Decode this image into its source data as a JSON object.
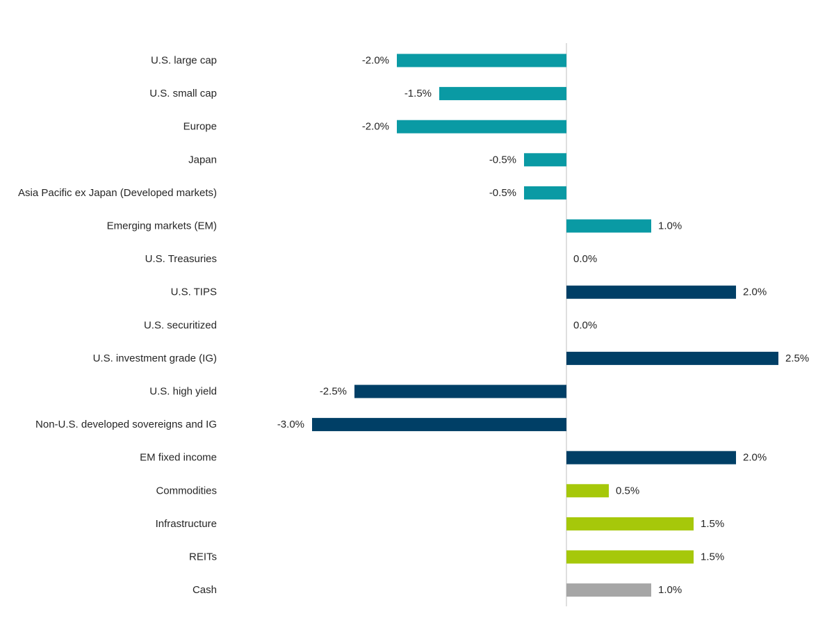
{
  "chart_data": {
    "type": "bar",
    "orientation": "horizontal",
    "categories": [
      "U.S. large cap",
      "U.S. small cap",
      "Europe",
      "Japan",
      "Asia Pacific ex Japan (Developed markets)",
      "Emerging markets (EM)",
      "U.S. Treasuries",
      "U.S. TIPS",
      "U.S. securitized",
      "U.S. investment grade (IG)",
      "U.S. high yield",
      "Non-U.S. developed sovereigns and IG",
      "EM fixed income",
      "Commodities",
      "Infrastructure",
      "REITs",
      "Cash"
    ],
    "values": [
      -2.0,
      -1.5,
      -2.0,
      -0.5,
      -0.5,
      1.0,
      0.0,
      2.0,
      0.0,
      2.5,
      -2.5,
      -3.0,
      2.0,
      0.5,
      1.5,
      1.5,
      1.0
    ],
    "data_labels": [
      "-2.0%",
      "-1.5%",
      "-2.0%",
      "-0.5%",
      "-0.5%",
      "1.0%",
      "0.0%",
      "2.0%",
      "0.0%",
      "2.5%",
      "-2.5%",
      "-3.0%",
      "2.0%",
      "0.5%",
      "1.5%",
      "1.5%",
      "1.0%"
    ],
    "bar_colors": [
      "#0a9aa4",
      "#0a9aa4",
      "#0a9aa4",
      "#0a9aa4",
      "#0a9aa4",
      "#0a9aa4",
      "#003f66",
      "#003f66",
      "#003f66",
      "#003f66",
      "#003f66",
      "#003f66",
      "#003f66",
      "#a6c80a",
      "#a6c80a",
      "#a6c80a",
      "#a6a6a6"
    ],
    "xlim": [
      -3.0,
      2.5
    ],
    "grid": false,
    "legend": "none",
    "title": "",
    "xlabel": "",
    "ylabel": ""
  },
  "colors": {
    "equity": "#0a9aa4",
    "fixed_income": "#003f66",
    "real_assets": "#a6c80a",
    "cash": "#a6a6a6",
    "zero_line": "#bfbfbf",
    "text": "#262626"
  }
}
